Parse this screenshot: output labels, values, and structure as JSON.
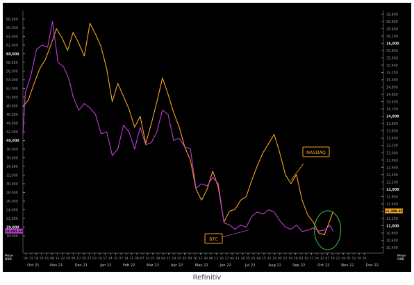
{
  "brand": "Refinitiv",
  "chart_data": {
    "type": "line",
    "grid": false,
    "legend": "inline labels",
    "left_axis": {
      "series": "BTC",
      "ylim": [
        14000,
        70000
      ],
      "ticks": [
        18000,
        20000,
        22000,
        24000,
        26000,
        28000,
        30000,
        32000,
        34000,
        36000,
        38000,
        40000,
        42000,
        44000,
        46000,
        48000,
        50000,
        52000,
        54000,
        56000,
        58000,
        60000,
        62000,
        64000,
        66000,
        68000
      ],
      "tick_labels": [
        "18,000",
        "20,000",
        "22,000",
        "24,000",
        "26,000",
        "28,000",
        "30,000",
        "32,000",
        "34,000",
        "36,000",
        "38,000",
        "40,000",
        "42,000",
        "44,000",
        "46,000",
        "48,000",
        "50,000",
        "52,000",
        "54,000",
        "56,000",
        "58,000",
        "60,000",
        "62,000",
        "64,000",
        "66,000",
        "68,000"
      ],
      "bold_ticks": [
        20000,
        40000,
        60000
      ],
      "unit_label": "Price\nUSD"
    },
    "right_axis": {
      "series": "NASDAQ",
      "ylim": [
        10250,
        16900
      ],
      "ticks": [
        10400,
        10600,
        10800,
        11000,
        11200,
        11400,
        11600,
        11800,
        12000,
        12200,
        12400,
        12600,
        12800,
        13000,
        13200,
        13400,
        13600,
        13800,
        14000,
        14200,
        14400,
        14600,
        14800,
        15000,
        15200,
        15400,
        15600,
        15800,
        16000,
        16200,
        16400,
        16600,
        16800
      ],
      "tick_labels": [
        "10,400",
        "10,600",
        "10,800",
        "11,000",
        "11,200",
        "11,400",
        "11,600",
        "11,800",
        "12,000",
        "12,200",
        "12,400",
        "12,600",
        "12,800",
        "13,000",
        "13,200",
        "13,400",
        "13,600",
        "13,800",
        "14,000",
        "14,200",
        "14,400",
        "14,600",
        "14,800",
        "15,000",
        "15,200",
        "15,400",
        "15,600",
        "15,800",
        "16,000",
        "16,200",
        "16,400",
        "16,600",
        "16,800"
      ],
      "bold_ticks": [
        11000,
        12000,
        14000,
        16000
      ],
      "unit_label": "Price\nUSD"
    },
    "x_axis": {
      "start": "2021-10-04",
      "end": "2022-12-30",
      "week_ticks": [
        "04",
        "11",
        "18",
        "25",
        "01",
        "08",
        "15",
        "22",
        "29",
        "06",
        "13",
        "20",
        "27",
        "03",
        "10",
        "17",
        "24",
        "31",
        "07",
        "14",
        "21",
        "28",
        "07",
        "14",
        "21",
        "28",
        "04",
        "11",
        "18",
        "25",
        "02",
        "09",
        "16",
        "23",
        "30",
        "06",
        "13",
        "20",
        "27",
        "04",
        "11",
        "18",
        "25",
        "01",
        "08",
        "15",
        "22",
        "29",
        "05",
        "12",
        "19",
        "26",
        "03",
        "10",
        "17",
        "24",
        "31",
        "07",
        "14",
        "21",
        "28",
        "05",
        "12",
        "19",
        "26"
      ],
      "months": [
        {
          "label": "Oct 21",
          "date": "2021-10-17"
        },
        {
          "label": "Nov 21",
          "date": "2021-11-15"
        },
        {
          "label": "Dec 21",
          "date": "2021-12-16"
        },
        {
          "label": "Jan 22",
          "date": "2022-01-16"
        },
        {
          "label": "Feb 22",
          "date": "2022-02-14"
        },
        {
          "label": "Mar 22",
          "date": "2022-03-16"
        },
        {
          "label": "Apr 22",
          "date": "2022-04-15"
        },
        {
          "label": "May 22",
          "date": "2022-05-16"
        },
        {
          "label": "Jun 22",
          "date": "2022-06-15"
        },
        {
          "label": "Jul 22",
          "date": "2022-07-16"
        },
        {
          "label": "Aug 22",
          "date": "2022-08-16"
        },
        {
          "label": "Sep 22",
          "date": "2022-09-15"
        },
        {
          "label": "Oct 22",
          "date": "2022-10-16"
        },
        {
          "label": "Nov 22",
          "date": "2022-11-15"
        },
        {
          "label": "Dec 22",
          "date": "2022-12-16"
        }
      ]
    },
    "series": [
      {
        "name": "NASDAQ",
        "axis": "right",
        "color": "#f5a623",
        "last_value_label": "11,398.35",
        "points": [
          [
            "2021-10-04",
            14260
          ],
          [
            "2021-10-11",
            14450
          ],
          [
            "2021-10-18",
            14900
          ],
          [
            "2021-10-25",
            15300
          ],
          [
            "2021-11-01",
            15550
          ],
          [
            "2021-11-08",
            15950
          ],
          [
            "2021-11-15",
            16400
          ],
          [
            "2021-11-22",
            16150
          ],
          [
            "2021-11-29",
            15800
          ],
          [
            "2021-12-06",
            16300
          ],
          [
            "2021-12-13",
            16000
          ],
          [
            "2021-12-20",
            15650
          ],
          [
            "2021-12-27",
            16550
          ],
          [
            "2022-01-03",
            16250
          ],
          [
            "2022-01-10",
            15900
          ],
          [
            "2022-01-17",
            15300
          ],
          [
            "2022-01-24",
            14400
          ],
          [
            "2022-01-31",
            14900
          ],
          [
            "2022-02-07",
            14550
          ],
          [
            "2022-02-14",
            14200
          ],
          [
            "2022-02-21",
            13700
          ],
          [
            "2022-02-28",
            14000
          ],
          [
            "2022-03-07",
            13250
          ],
          [
            "2022-03-14",
            13800
          ],
          [
            "2022-03-21",
            14400
          ],
          [
            "2022-03-28",
            15050
          ],
          [
            "2022-04-04",
            14600
          ],
          [
            "2022-04-11",
            14100
          ],
          [
            "2022-04-18",
            13700
          ],
          [
            "2022-04-25",
            13150
          ],
          [
            "2022-05-02",
            12800
          ],
          [
            "2022-05-09",
            12000
          ],
          [
            "2022-05-16",
            11700
          ],
          [
            "2022-05-23",
            12000
          ],
          [
            "2022-05-30",
            12500
          ],
          [
            "2022-06-06",
            12050
          ],
          [
            "2022-06-13",
            11100
          ],
          [
            "2022-06-20",
            11400
          ],
          [
            "2022-06-27",
            11450
          ],
          [
            "2022-07-04",
            11700
          ],
          [
            "2022-07-11",
            11800
          ],
          [
            "2022-07-18",
            12250
          ],
          [
            "2022-07-25",
            12650
          ],
          [
            "2022-08-01",
            13000
          ],
          [
            "2022-08-08",
            13250
          ],
          [
            "2022-08-15",
            13500
          ],
          [
            "2022-08-22",
            13000
          ],
          [
            "2022-08-29",
            12400
          ],
          [
            "2022-09-05",
            12150
          ],
          [
            "2022-09-12",
            12400
          ],
          [
            "2022-09-19",
            11700
          ],
          [
            "2022-09-26",
            11300
          ],
          [
            "2022-10-03",
            11100
          ],
          [
            "2022-10-10",
            10800
          ],
          [
            "2022-10-17",
            10750
          ],
          [
            "2022-10-24",
            11150
          ],
          [
            "2022-10-28",
            11398
          ]
        ]
      },
      {
        "name": "BTC",
        "axis": "left",
        "color": "#c23fd6",
        "last_value_label": "19,003.60",
        "points": [
          [
            "2021-10-04",
            41500
          ],
          [
            "2021-10-07",
            51000
          ],
          [
            "2021-10-14",
            55000
          ],
          [
            "2021-10-21",
            61000
          ],
          [
            "2021-10-28",
            62000
          ],
          [
            "2021-11-04",
            61500
          ],
          [
            "2021-11-10",
            67500
          ],
          [
            "2021-11-17",
            58000
          ],
          [
            "2021-11-24",
            57000
          ],
          [
            "2021-12-01",
            54000
          ],
          [
            "2021-12-06",
            50000
          ],
          [
            "2021-12-13",
            47000
          ],
          [
            "2021-12-20",
            48500
          ],
          [
            "2021-12-27",
            47500
          ],
          [
            "2022-01-03",
            46000
          ],
          [
            "2022-01-10",
            41500
          ],
          [
            "2022-01-17",
            42000
          ],
          [
            "2022-01-24",
            36500
          ],
          [
            "2022-01-31",
            38000
          ],
          [
            "2022-02-07",
            43500
          ],
          [
            "2022-02-14",
            42000
          ],
          [
            "2022-02-21",
            38000
          ],
          [
            "2022-02-28",
            43000
          ],
          [
            "2022-03-07",
            39000
          ],
          [
            "2022-03-14",
            39500
          ],
          [
            "2022-03-21",
            42000
          ],
          [
            "2022-03-28",
            47000
          ],
          [
            "2022-04-04",
            46000
          ],
          [
            "2022-04-11",
            40000
          ],
          [
            "2022-04-18",
            40500
          ],
          [
            "2022-04-25",
            38500
          ],
          [
            "2022-05-02",
            38000
          ],
          [
            "2022-05-09",
            29000
          ],
          [
            "2022-05-16",
            30000
          ],
          [
            "2022-05-23",
            29500
          ],
          [
            "2022-05-30",
            31500
          ],
          [
            "2022-06-06",
            30000
          ],
          [
            "2022-06-13",
            21000
          ],
          [
            "2022-06-20",
            20500
          ],
          [
            "2022-06-27",
            19500
          ],
          [
            "2022-07-04",
            20500
          ],
          [
            "2022-07-11",
            20000
          ],
          [
            "2022-07-18",
            22500
          ],
          [
            "2022-07-25",
            23500
          ],
          [
            "2022-08-01",
            23000
          ],
          [
            "2022-08-08",
            24000
          ],
          [
            "2022-08-15",
            23500
          ],
          [
            "2022-08-22",
            21500
          ],
          [
            "2022-08-29",
            20000
          ],
          [
            "2022-09-05",
            19500
          ],
          [
            "2022-09-12",
            20500
          ],
          [
            "2022-09-19",
            19000
          ],
          [
            "2022-09-26",
            19300
          ],
          [
            "2022-10-03",
            19800
          ],
          [
            "2022-10-10",
            19100
          ],
          [
            "2022-10-17",
            19300
          ],
          [
            "2022-10-24",
            20400
          ],
          [
            "2022-10-28",
            19004
          ]
        ]
      }
    ],
    "annotations": [
      {
        "text": "NASDAQ",
        "type": "series-label"
      },
      {
        "text": "BTC",
        "type": "series-label"
      },
      {
        "text": "",
        "type": "circle-highlight",
        "color": "#3aa53a",
        "date": "2022-10-21"
      }
    ]
  }
}
